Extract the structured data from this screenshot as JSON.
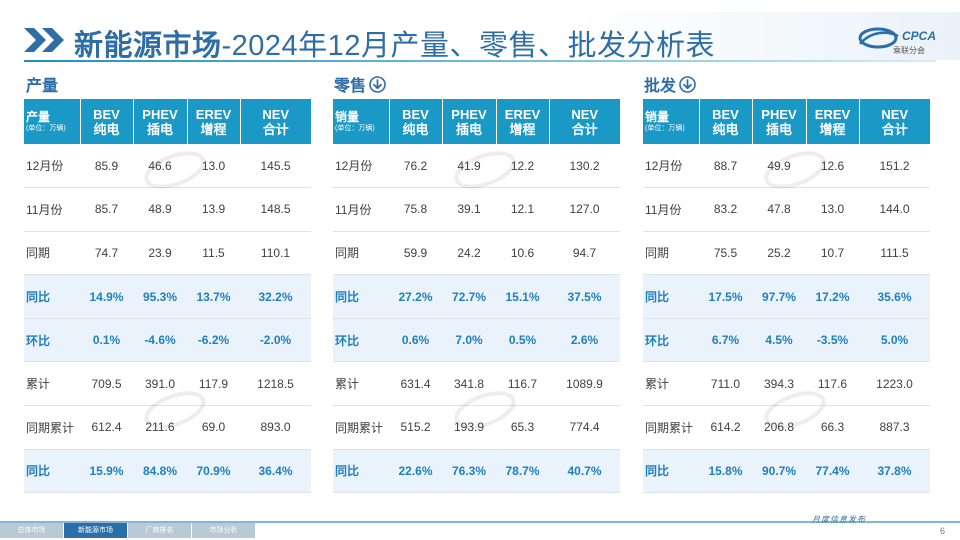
{
  "header": {
    "title_bold": "新能源市场",
    "title_rest": "-2024年12月产量、零售、批发分析表",
    "logo_text": "乘联分会",
    "logo_abbr": "CPCA"
  },
  "columns": [
    "BEV",
    "PHEV",
    "EREV",
    "NEV"
  ],
  "column_subs": [
    "纯电",
    "插电",
    "增程",
    "合计"
  ],
  "unit": "(单位：万辆)",
  "sections": [
    {
      "heading": "产量",
      "corner": "产量",
      "rows": [
        {
          "label": "12月份",
          "v": [
            "85.9",
            "46.6",
            "13.0",
            "145.5"
          ],
          "hl": false
        },
        {
          "label": "11月份",
          "v": [
            "85.7",
            "48.9",
            "13.9",
            "148.5"
          ],
          "hl": false
        },
        {
          "label": "同期",
          "v": [
            "74.7",
            "23.9",
            "11.5",
            "110.1"
          ],
          "hl": false
        },
        {
          "label": "同比",
          "v": [
            "14.9%",
            "95.3%",
            "13.7%",
            "32.2%"
          ],
          "hl": true
        },
        {
          "label": "环比",
          "v": [
            "0.1%",
            "-4.6%",
            "-6.2%",
            "-2.0%"
          ],
          "hl": true
        },
        {
          "label": "累计",
          "v": [
            "709.5",
            "391.0",
            "117.9",
            "1218.5"
          ],
          "hl": false
        },
        {
          "label": "同期累计",
          "v": [
            "612.4",
            "211.6",
            "69.0",
            "893.0"
          ],
          "hl": false
        },
        {
          "label": "同比",
          "v": [
            "15.9%",
            "84.8%",
            "70.9%",
            "36.4%"
          ],
          "hl": true
        }
      ]
    },
    {
      "heading": "零售",
      "corner": "销量",
      "rows": [
        {
          "label": "12月份",
          "v": [
            "76.2",
            "41.9",
            "12.2",
            "130.2"
          ],
          "hl": false
        },
        {
          "label": "11月份",
          "v": [
            "75.8",
            "39.1",
            "12.1",
            "127.0"
          ],
          "hl": false
        },
        {
          "label": "同期",
          "v": [
            "59.9",
            "24.2",
            "10.6",
            "94.7"
          ],
          "hl": false
        },
        {
          "label": "同比",
          "v": [
            "27.2%",
            "72.7%",
            "15.1%",
            "37.5%"
          ],
          "hl": true
        },
        {
          "label": "环比",
          "v": [
            "0.6%",
            "7.0%",
            "0.5%",
            "2.6%"
          ],
          "hl": true
        },
        {
          "label": "累计",
          "v": [
            "631.4",
            "341.8",
            "116.7",
            "1089.9"
          ],
          "hl": false
        },
        {
          "label": "同期累计",
          "v": [
            "515.2",
            "193.9",
            "65.3",
            "774.4"
          ],
          "hl": false
        },
        {
          "label": "同比",
          "v": [
            "22.6%",
            "76.3%",
            "78.7%",
            "40.7%"
          ],
          "hl": true
        }
      ]
    },
    {
      "heading": "批发",
      "corner": "销量",
      "rows": [
        {
          "label": "12月份",
          "v": [
            "88.7",
            "49.9",
            "12.6",
            "151.2"
          ],
          "hl": false
        },
        {
          "label": "11月份",
          "v": [
            "83.2",
            "47.8",
            "13.0",
            "144.0"
          ],
          "hl": false
        },
        {
          "label": "同期",
          "v": [
            "75.5",
            "25.2",
            "10.7",
            "111.5"
          ],
          "hl": false
        },
        {
          "label": "同比",
          "v": [
            "17.5%",
            "97.7%",
            "17.2%",
            "35.6%"
          ],
          "hl": true
        },
        {
          "label": "环比",
          "v": [
            "6.7%",
            "4.5%",
            "-3.5%",
            "5.0%"
          ],
          "hl": true
        },
        {
          "label": "累计",
          "v": [
            "711.0",
            "394.3",
            "117.6",
            "1223.0"
          ],
          "hl": false
        },
        {
          "label": "同期累计",
          "v": [
            "614.2",
            "206.8",
            "66.3",
            "887.3"
          ],
          "hl": false
        },
        {
          "label": "同比",
          "v": [
            "15.8%",
            "90.7%",
            "77.4%",
            "37.8%"
          ],
          "hl": true
        }
      ]
    }
  ],
  "footer": {
    "tabs": [
      "总体市场",
      "新能源市场",
      "厂商排名",
      "市场分析"
    ],
    "active_tab": 1,
    "right_text": "月度信息发布",
    "page": "6"
  },
  "colors": {
    "header_blue": "#1a98c6",
    "title_blue": "#2f6ea5",
    "highlight_text": "#1f7fc0",
    "highlight_bg": "#eaf3fb"
  }
}
